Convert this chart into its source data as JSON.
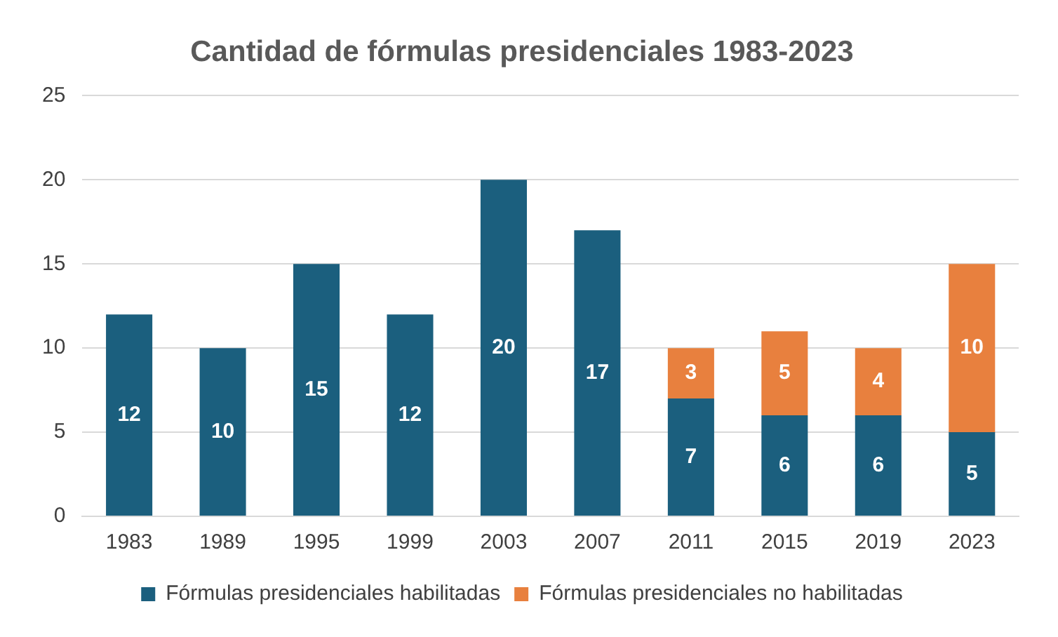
{
  "chart_data": {
    "type": "bar",
    "title": "Cantidad de fórmulas presidenciales 1983-2023",
    "categories": [
      "1983",
      "1989",
      "1995",
      "1999",
      "2003",
      "2007",
      "2011",
      "2015",
      "2019",
      "2023"
    ],
    "stacked": true,
    "ylim": [
      0,
      25
    ],
    "yticks": [
      0,
      5,
      10,
      15,
      20,
      25
    ],
    "grid": "y",
    "legend": "bottom",
    "data_labels": true,
    "series": [
      {
        "name": "Fórmulas presidenciales habilitadas",
        "color": "#1b5f7e",
        "values": [
          12,
          10,
          15,
          12,
          20,
          17,
          7,
          6,
          6,
          5
        ]
      },
      {
        "name": "Fórmulas presidenciales no habilitadas",
        "color": "#e8803e",
        "values": [
          null,
          null,
          null,
          null,
          null,
          null,
          3,
          5,
          4,
          10
        ]
      }
    ]
  }
}
